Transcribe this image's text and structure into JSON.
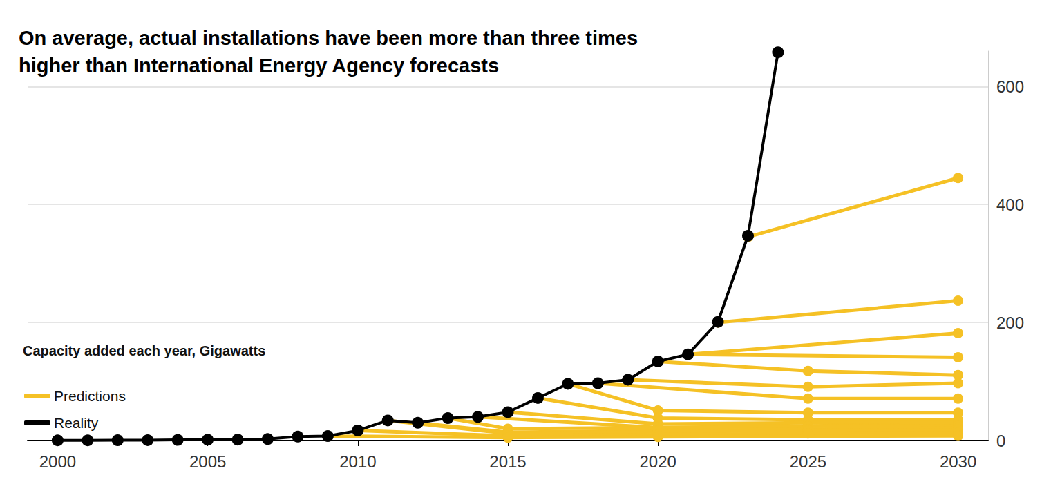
{
  "chart_data": {
    "type": "line",
    "title": "On average, actual installations have been more than three times higher than International Energy Agency forecasts",
    "subtitle": "Capacity added each year, Gigawatts",
    "xlim": [
      1999,
      2031
    ],
    "xticks": [
      2000,
      2005,
      2010,
      2015,
      2020,
      2025,
      2030
    ],
    "ylim": [
      0,
      660
    ],
    "yticks": [
      0,
      200,
      400,
      600
    ],
    "grid": true,
    "legend": "left",
    "marker": "circle",
    "series": [
      {
        "name": "Predictions",
        "color": "#f5c125",
        "x": [
          2023,
          2030
        ],
        "values": [
          345,
          445
        ]
      },
      {
        "name": "Predictions",
        "color": "#f5c125",
        "x": [
          2022,
          2030
        ],
        "values": [
          200,
          237
        ]
      },
      {
        "name": "Predictions",
        "color": "#f5c125",
        "x": [
          2021,
          2030
        ],
        "values": [
          146,
          182
        ]
      },
      {
        "name": "Predictions",
        "color": "#f5c125",
        "x": [
          2021,
          2030
        ],
        "values": [
          146,
          141
        ]
      },
      {
        "name": "Predictions",
        "color": "#f5c125",
        "x": [
          2020,
          2025,
          2030
        ],
        "values": [
          134,
          118,
          111
        ]
      },
      {
        "name": "Predictions",
        "color": "#f5c125",
        "x": [
          2019,
          2025,
          2030
        ],
        "values": [
          103,
          91,
          97
        ]
      },
      {
        "name": "Predictions",
        "color": "#f5c125",
        "x": [
          2018,
          2025,
          2030
        ],
        "values": [
          97,
          71,
          71
        ]
      },
      {
        "name": "Predictions",
        "color": "#f5c125",
        "x": [
          2017,
          2020,
          2025,
          2030
        ],
        "values": [
          96,
          51,
          47,
          47
        ]
      },
      {
        "name": "Predictions",
        "color": "#f5c125",
        "x": [
          2016,
          2020,
          2025,
          2030
        ],
        "values": [
          72,
          38,
          35,
          35
        ]
      },
      {
        "name": "Predictions",
        "color": "#f5c125",
        "x": [
          2015,
          2020,
          2025,
          2030
        ],
        "values": [
          48,
          28,
          30,
          30
        ]
      },
      {
        "name": "Predictions",
        "color": "#f5c125",
        "x": [
          2014,
          2020,
          2025,
          2030
        ],
        "values": [
          40,
          22,
          25,
          27
        ]
      },
      {
        "name": "Predictions",
        "color": "#f5c125",
        "x": [
          2013,
          2015,
          2020,
          2025,
          2030
        ],
        "values": [
          38,
          20,
          22,
          24,
          25
        ]
      },
      {
        "name": "Predictions",
        "color": "#f5c125",
        "x": [
          2012,
          2015,
          2020,
          2025,
          2030
        ],
        "values": [
          30,
          14,
          17,
          19,
          21
        ]
      },
      {
        "name": "Predictions",
        "color": "#f5c125",
        "x": [
          2011,
          2015,
          2020,
          2025,
          2030
        ],
        "values": [
          34,
          12,
          15,
          17,
          18
        ]
      },
      {
        "name": "Predictions",
        "color": "#f5c125",
        "x": [
          2010,
          2015,
          2020,
          2025,
          2030
        ],
        "values": [
          17,
          8,
          10,
          12,
          13
        ]
      },
      {
        "name": "Predictions",
        "color": "#f5c125",
        "x": [
          2009,
          2015,
          2020,
          2030
        ],
        "values": [
          7.5,
          5,
          6,
          8
        ]
      },
      {
        "name": "Reality",
        "color": "#000000",
        "x": [
          2000,
          2001,
          2002,
          2003,
          2004,
          2005,
          2006,
          2007,
          2008,
          2009,
          2010,
          2011,
          2012,
          2013,
          2014,
          2015,
          2016,
          2017,
          2018,
          2019,
          2020,
          2021,
          2022,
          2023,
          2024
        ],
        "values": [
          0.3,
          0.3,
          0.5,
          0.6,
          1.1,
          1.4,
          1.6,
          2.5,
          6.7,
          7.5,
          17,
          34,
          30,
          38,
          40,
          48,
          72,
          96,
          97,
          103,
          134,
          146,
          201,
          347,
          658
        ]
      }
    ]
  }
}
